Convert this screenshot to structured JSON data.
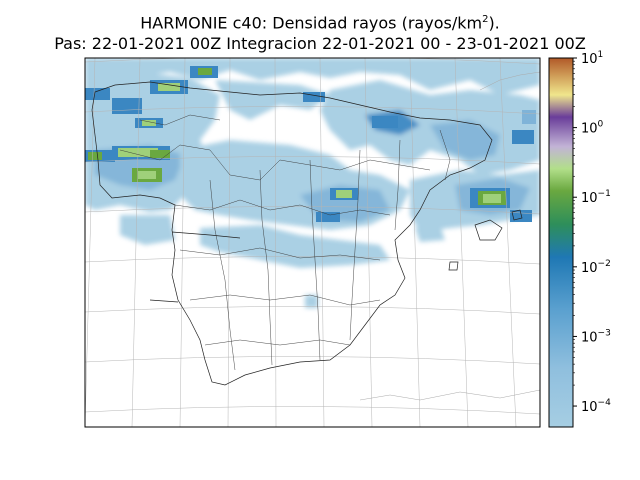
{
  "title": {
    "line1_prefix": "HARMONIE c40: Densidad rayos  (rayos/km",
    "line1_sup": "2",
    "line1_suffix": ").",
    "line2": "Pas: 22-01-2021 00Z Integracion 22-01-2021 00 - 23-01-2021 00Z"
  },
  "colorbar": {
    "scale": "log",
    "range": [
      5e-05,
      10
    ],
    "ticks": [
      {
        "base": "10",
        "exp": "1",
        "value": 10
      },
      {
        "base": "10",
        "exp": "0",
        "value": 1
      },
      {
        "base": "10",
        "exp": "−1",
        "value": 0.1
      },
      {
        "base": "10",
        "exp": "−2",
        "value": 0.01
      },
      {
        "base": "10",
        "exp": "−3",
        "value": 0.001
      },
      {
        "base": "10",
        "exp": "−4",
        "value": 0.0001
      }
    ],
    "colors": [
      "#a6cee3",
      "#5aa0cf",
      "#1f78b4",
      "#2e8f5a",
      "#6aa840",
      "#b2df8a",
      "#c2b3d6",
      "#6a3d9a",
      "#f0e68c",
      "#b15928"
    ]
  },
  "map": {
    "region": "Península Ibérica",
    "land_color": "#ffffff",
    "field_colors": {
      "light": "#a6cee3",
      "mid": "#7fb3d8",
      "dark": "#3b87c2",
      "green": "#9fd07a",
      "green_dark": "#4aa04a"
    }
  }
}
